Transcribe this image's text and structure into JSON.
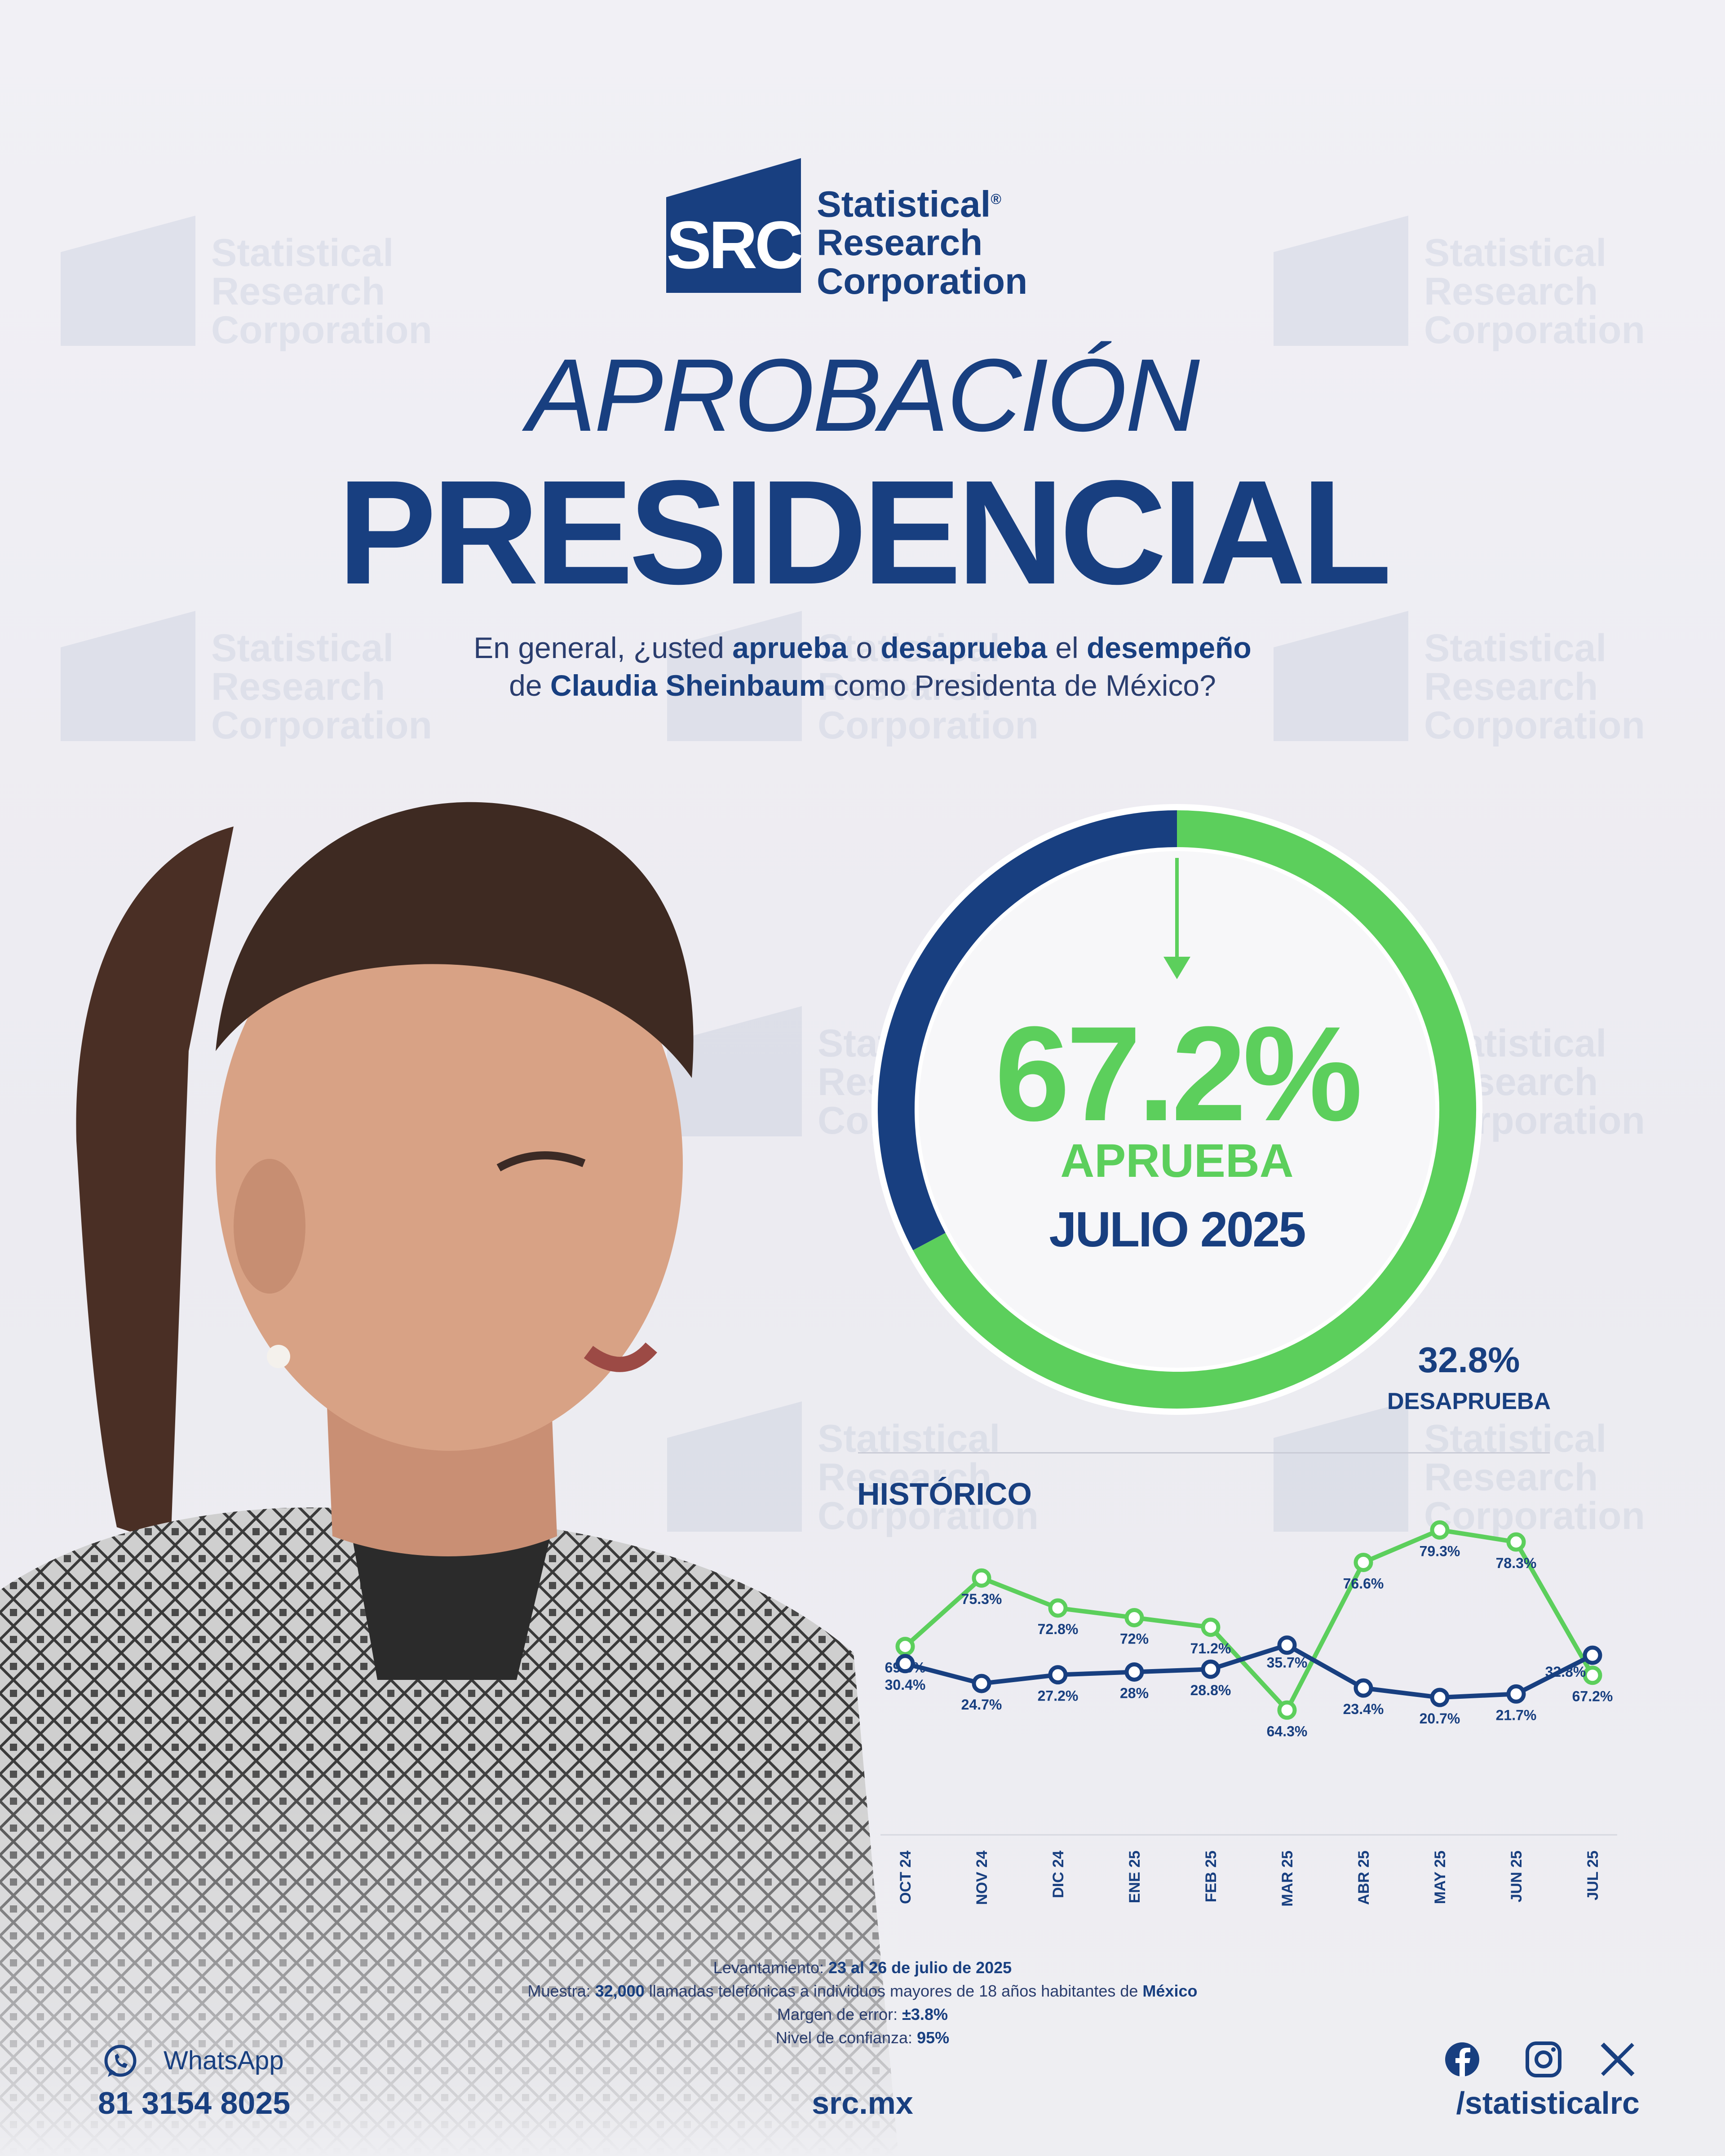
{
  "logo": {
    "abbr": "SRC",
    "name_line1": "Statistical",
    "name_line2": "Research",
    "name_line3": "Corporation",
    "registered": "®"
  },
  "title": {
    "line1": "APROBACIÓN",
    "line2": "PRESIDENCIAL"
  },
  "question": {
    "l1_a": "En general, ¿usted ",
    "l1_b": "aprueba",
    "l1_c": " o ",
    "l1_d": "desaprueba",
    "l1_e": " el ",
    "l1_f": "desempeño",
    "l2_a": "de ",
    "l2_b": "Claudia Sheinbaum",
    "l2_c": " como Presidenta de México?"
  },
  "main_result": {
    "approve_pct": "67.2%",
    "approve_label": "APRUEBA",
    "period": "JULIO 2025",
    "disapprove_pct": "32.8%",
    "disapprove_label": "DESAPRUEBA"
  },
  "history_title": "HISTÓRICO",
  "colors": {
    "brand_blue": "#183f80",
    "approve_green": "#5ccf5c",
    "disapprove_blue": "#183f80"
  },
  "chart_data": [
    {
      "type": "pie",
      "values": [
        67.2,
        32.8
      ],
      "labels": [
        "APRUEBA",
        "DESAPRUEBA"
      ],
      "colors": [
        "#5ccf5c",
        "#183f80"
      ],
      "style": "donut"
    },
    {
      "type": "line",
      "categories": [
        "OCT 24",
        "NOV 24",
        "DIC 24",
        "ENE 25",
        "FEB 25",
        "MAR 25",
        "ABR 25",
        "MAY 25",
        "JUN 25",
        "JUL 25"
      ],
      "series": [
        {
          "values": [
            69.6,
            75.3,
            72.8,
            72,
            71.2,
            64.3,
            76.6,
            79.3,
            78.3,
            67.2
          ],
          "labels": [
            "69.6%",
            "75.3%",
            "72.8%",
            "72%",
            "71.2%",
            "64.3%",
            "76.6%",
            "79.3%",
            "78.3%",
            "67.2%"
          ],
          "color": "#5ccf5c"
        },
        {
          "values": [
            30.4,
            24.7,
            27.2,
            28,
            28.8,
            35.7,
            23.4,
            20.7,
            21.7,
            32.8
          ],
          "labels": [
            "30.4%",
            "24.7%",
            "27.2%",
            "28%",
            "28.8%",
            "35.7%",
            "23.4%",
            "20.7%",
            "21.7%",
            "32.8%"
          ],
          "color": "#183f80"
        }
      ]
    }
  ],
  "footer": {
    "survey_label": "Levantamiento:",
    "survey_value": "23 al 26 de julio de 2025",
    "sample_label": "Muestra:",
    "sample_value_1": "32,000",
    "sample_value_2": " llamadas telefónicas a individuos mayores de 18 años habitantes de ",
    "sample_value_3": "México",
    "error_label": "Margen de error:",
    "error_value": "±3.8%",
    "confidence_label": "Nivel de confianza:",
    "confidence_value": "95%",
    "whatsapp_label": "WhatsApp",
    "phone": "81 3154 8025",
    "website": "src.mx",
    "social_handle": "/statisticalrc",
    "icons": [
      "whatsapp-icon",
      "facebook-icon",
      "instagram-icon",
      "x-icon"
    ]
  }
}
